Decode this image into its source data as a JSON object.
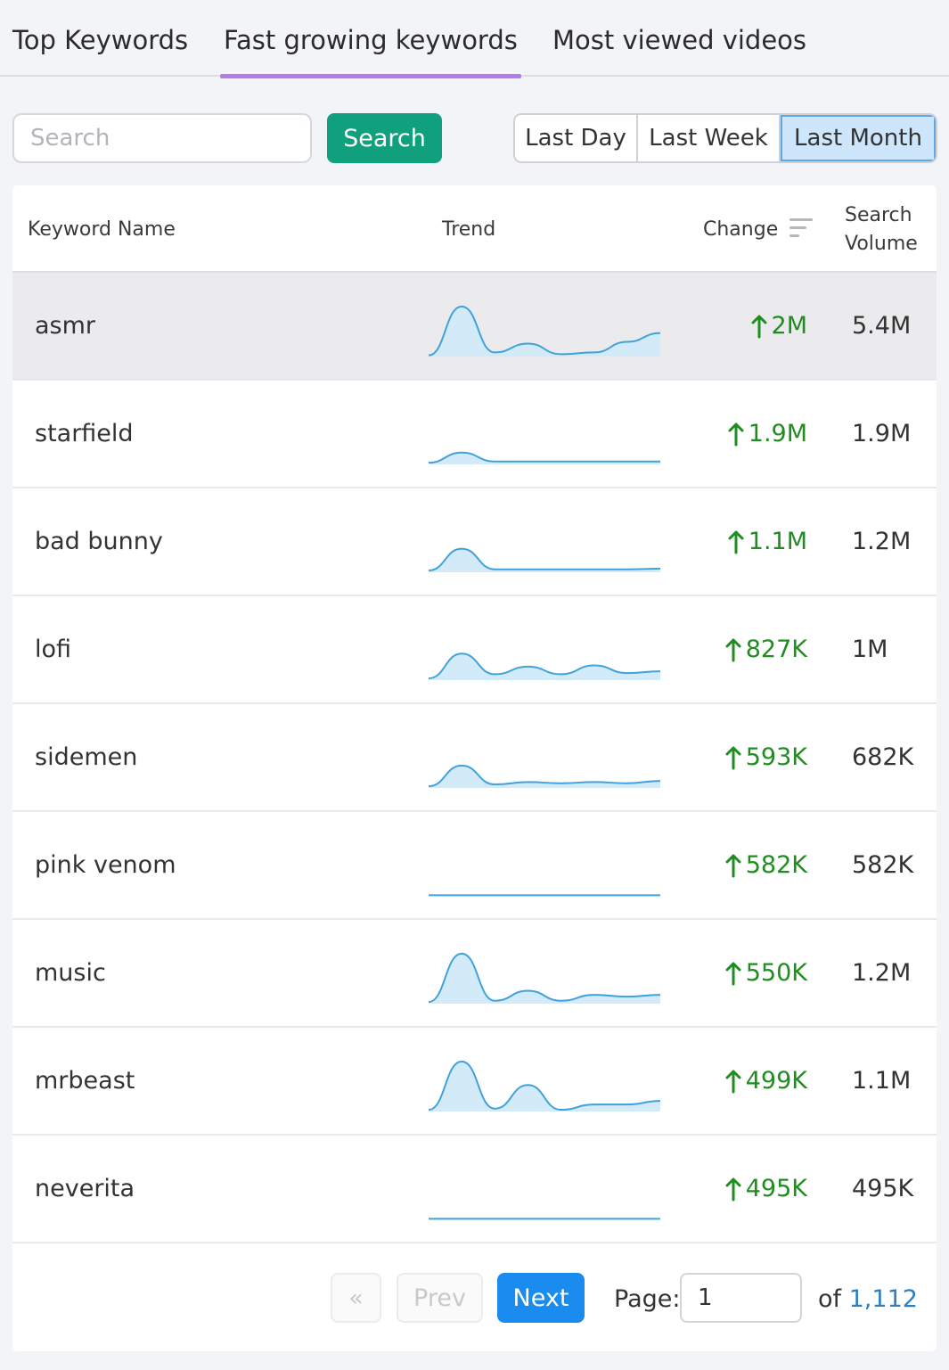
{
  "tabs": [
    {
      "label": "Top Keywords",
      "active": false
    },
    {
      "label": "Fast growing keywords",
      "active": true
    },
    {
      "label": "Most viewed videos",
      "active": false
    }
  ],
  "search": {
    "placeholder": "Search",
    "value": "",
    "button_label": "Search"
  },
  "ranges": [
    {
      "label": "Last Day",
      "active": false
    },
    {
      "label": "Last Week",
      "active": false
    },
    {
      "label": "Last Month",
      "active": true
    }
  ],
  "table": {
    "headers": {
      "keyword": "Keyword Name",
      "trend": "Trend",
      "change": "Change",
      "volume_line1": "Search",
      "volume_line2": "Volume"
    },
    "rows": [
      {
        "keyword": "asmr",
        "change": "2M",
        "volume": "5.4M",
        "trend": [
          2,
          85,
          7,
          22,
          4,
          7,
          25,
          40
        ]
      },
      {
        "keyword": "starfield",
        "change": "1.9M",
        "volume": "1.9M",
        "trend": [
          3,
          20,
          5,
          5,
          5,
          5,
          5,
          5
        ]
      },
      {
        "keyword": "bad bunny",
        "change": "1.1M",
        "volume": "1.2M",
        "trend": [
          3,
          40,
          5,
          5,
          5,
          5,
          5,
          6
        ]
      },
      {
        "keyword": "lofi",
        "change": "827K",
        "volume": "1M",
        "trend": [
          3,
          45,
          10,
          23,
          10,
          25,
          12,
          15
        ]
      },
      {
        "keyword": "sidemen",
        "change": "593K",
        "volume": "682K",
        "trend": [
          3,
          38,
          6,
          10,
          8,
          10,
          8,
          12
        ]
      },
      {
        "keyword": "pink venom",
        "change": "582K",
        "volume": "582K",
        "trend": [
          1,
          1,
          1,
          1,
          1,
          1,
          1,
          1
        ]
      },
      {
        "keyword": "music",
        "change": "550K",
        "volume": "1.2M",
        "trend": [
          3,
          85,
          5,
          22,
          5,
          15,
          12,
          15
        ]
      },
      {
        "keyword": "mrbeast",
        "change": "499K",
        "volume": "1.1M",
        "trend": [
          3,
          85,
          5,
          45,
          3,
          12,
          12,
          18
        ]
      },
      {
        "keyword": "neverita",
        "change": "495K",
        "volume": "495K",
        "trend": [
          1,
          1,
          1,
          1,
          1,
          1,
          1,
          1
        ]
      }
    ]
  },
  "pagination": {
    "first_label": "«",
    "prev_label": "Prev",
    "next_label": "Next",
    "page_label": "Page:",
    "page_value": "1",
    "of_label": "of",
    "total_pages": "1,112"
  },
  "colors": {
    "accent_tab": "#b17be8",
    "search_button": "#11a07d",
    "change_positive": "#1f8d1f",
    "next_button": "#1a8cf0",
    "sparkline_stroke": "#3fa2dc",
    "sparkline_fill": "#d3ebf9"
  }
}
